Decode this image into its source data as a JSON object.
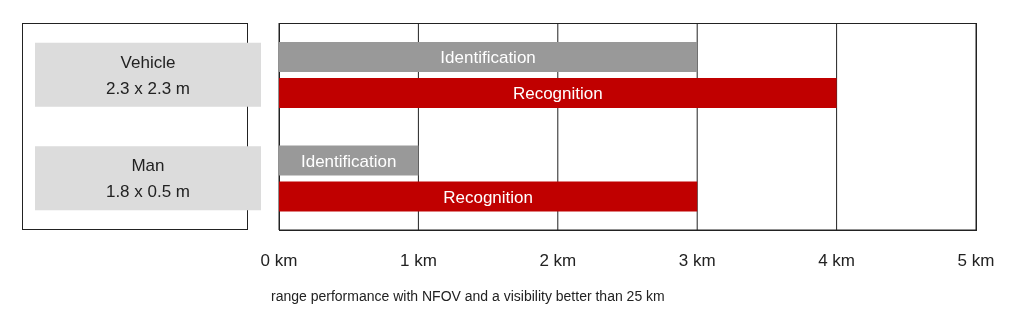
{
  "chart_data": {
    "type": "bar",
    "orientation": "horizontal",
    "categories": [
      "Vehicle\n2.3 x 2.3 m",
      "Man\n1.8 x 0.5 m"
    ],
    "series": [
      {
        "name": "Identification",
        "color": "#999999",
        "values": [
          3,
          1
        ]
      },
      {
        "name": "Recognition",
        "color": "#c00000",
        "values": [
          4,
          3
        ]
      }
    ],
    "xlim": [
      0,
      5
    ],
    "xticks": [
      {
        "value": 0,
        "label": "0 km"
      },
      {
        "value": 1,
        "label": "1 km"
      },
      {
        "value": 2,
        "label": "2 km"
      },
      {
        "value": 3,
        "label": "3 km"
      },
      {
        "value": 4,
        "label": "4 km"
      },
      {
        "value": 5,
        "label": "5 km"
      }
    ],
    "grid": "x",
    "annotations": [
      "range performance with NFOV and a visibility better than 25 km"
    ]
  }
}
